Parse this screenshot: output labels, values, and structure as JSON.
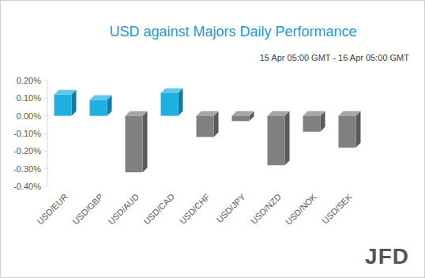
{
  "chart_data": {
    "type": "bar",
    "title": "USD against Majors Daily Performance",
    "subtitle": "15 Apr 05:00 GMT - 16 Apr 05:00 GMT",
    "logo": "JFD",
    "categories": [
      "USD/EUR",
      "USD/GBP",
      "USD/AUD",
      "USD/CAD",
      "USD/CHF",
      "USD/JPY",
      "USD/NZD",
      "USD/NOK",
      "USD/SEK"
    ],
    "values": [
      0.12,
      0.09,
      -0.32,
      0.13,
      -0.12,
      -0.03,
      -0.28,
      -0.09,
      -0.18
    ],
    "colors": [
      "#1fb0e2",
      "#1fb0e2",
      "#808080",
      "#1fb0e2",
      "#808080",
      "#808080",
      "#808080",
      "#808080",
      "#808080"
    ],
    "ylim": [
      -0.4,
      0.2
    ],
    "yticks": [
      {
        "value": -0.4,
        "label": "-0.40%"
      },
      {
        "value": -0.3,
        "label": "-0.30%"
      },
      {
        "value": -0.2,
        "label": "-0.20%"
      },
      {
        "value": -0.1,
        "label": "-0.10%"
      },
      {
        "value": 0,
        "label": "0.00%"
      },
      {
        "value": 0.1,
        "label": "0.10%"
      },
      {
        "value": 0.2,
        "label": "0.20%"
      }
    ],
    "grid": false
  }
}
